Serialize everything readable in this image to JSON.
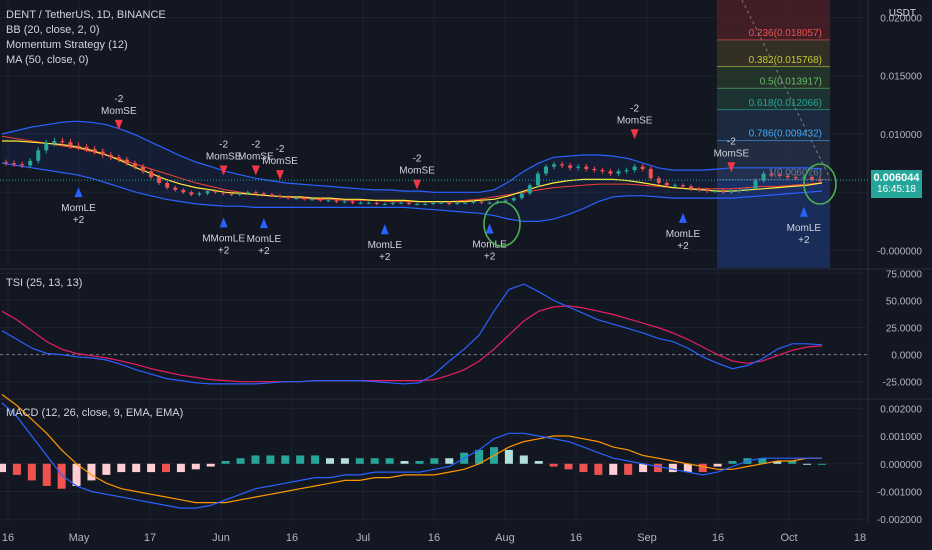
{
  "header": {
    "symbol_line": "DENT / TetherUS, 1D, BINANCE",
    "indicators": [
      "BB (20, close, 2, 0)",
      "Momentum Strategy (12)",
      "MA (50, close, 0)"
    ],
    "currency": "USDT"
  },
  "price_tag": {
    "price": "0.006044",
    "countdown": "16:45:18"
  },
  "tsi_label": "TSI (25, 13, 13)",
  "macd_label": "MACD (12, 26, close, 9, EMA, EMA)",
  "colors": {
    "bg": "#131722",
    "up": "#26a69a",
    "down": "#ef5350",
    "bb": "#2962ff",
    "ma": "#ffeb3b",
    "orange": "#ff9800",
    "tsi_signal": "#e91e63",
    "long": "#2962ff",
    "short": "#f23645",
    "grid": "#1e222d",
    "circle": "#4caf50"
  },
  "chart_data": [
    {
      "type": "candlestick",
      "name": "price",
      "x_ticks": [
        "16",
        "May",
        "17",
        "Jun",
        "16",
        "Jul",
        "16",
        "Aug",
        "16",
        "Sep",
        "16",
        "Oct",
        "18"
      ],
      "y_ticks": [
        "0.020000",
        "0.015000",
        "0.010000",
        "0.005000",
        "-0.000000"
      ],
      "ylim": [
        -0.0015,
        0.0215
      ],
      "closes": [
        0.0075,
        0.0074,
        0.0073,
        0.0077,
        0.0086,
        0.0092,
        0.0094,
        0.0093,
        0.009,
        0.0089,
        0.0087,
        0.0085,
        0.0082,
        0.008,
        0.0078,
        0.0075,
        0.0072,
        0.0068,
        0.0063,
        0.0058,
        0.0054,
        0.0052,
        0.005,
        0.0048,
        0.0049,
        0.0051,
        0.005,
        0.0049,
        0.0048,
        0.0049,
        0.005,
        0.0049,
        0.0048,
        0.0047,
        0.0046,
        0.0045,
        0.0045,
        0.0044,
        0.0044,
        0.0043,
        0.0043,
        0.0042,
        0.0042,
        0.0041,
        0.0041,
        0.0041,
        0.004,
        0.004,
        0.0041,
        0.0041,
        0.004,
        0.004,
        0.004,
        0.0041,
        0.0041,
        0.004,
        0.0041,
        0.0041,
        0.0042,
        0.0041,
        0.0041,
        0.0042,
        0.0043,
        0.0045,
        0.0049,
        0.0056,
        0.0066,
        0.0072,
        0.0074,
        0.0073,
        0.0071,
        0.0072,
        0.007,
        0.0069,
        0.0068,
        0.0066,
        0.0068,
        0.0069,
        0.0072,
        0.007,
        0.0062,
        0.0058,
        0.0056,
        0.0056,
        0.0055,
        0.0053,
        0.0052,
        0.0051,
        0.0051,
        0.005,
        0.0051,
        0.0052,
        0.0053,
        0.006,
        0.0066,
        0.0065,
        0.0064,
        0.0063,
        0.0062,
        0.0063,
        0.0061,
        0.006
      ],
      "bb_upper": [
        0.01,
        0.0103,
        0.0106,
        0.0108,
        0.011,
        0.0111,
        0.011,
        0.0108,
        0.0104,
        0.0099,
        0.0093,
        0.0087,
        0.0081,
        0.0076,
        0.0072,
        0.0068,
        0.0065,
        0.0062,
        0.006,
        0.0058,
        0.0057,
        0.0056,
        0.0055,
        0.0054,
        0.0053,
        0.0052,
        0.0052,
        0.0051,
        0.0051,
        0.005,
        0.005,
        0.005,
        0.005,
        0.0052,
        0.0059,
        0.0068,
        0.0075,
        0.008,
        0.0081,
        0.0082,
        0.0082,
        0.0081,
        0.0079,
        0.0075,
        0.0071,
        0.0069,
        0.0069,
        0.0069,
        0.007,
        0.0071,
        0.0071,
        0.0071,
        0.0071,
        0.0071,
        0.0071,
        0.007
      ],
      "bb_lower": [
        0.0075,
        0.0073,
        0.0071,
        0.0069,
        0.0067,
        0.0065,
        0.0062,
        0.0058,
        0.0054,
        0.005,
        0.0047,
        0.0044,
        0.0042,
        0.004,
        0.0039,
        0.0038,
        0.0038,
        0.0037,
        0.0037,
        0.0037,
        0.0037,
        0.0037,
        0.0037,
        0.0037,
        0.0037,
        0.0037,
        0.0037,
        0.0037,
        0.0036,
        0.0035,
        0.0034,
        0.0033,
        0.0032,
        0.003,
        0.0027,
        0.0025,
        0.0025,
        0.0027,
        0.0031,
        0.0036,
        0.0042,
        0.0046,
        0.0047,
        0.0047,
        0.0046,
        0.0045,
        0.0045,
        0.0045,
        0.0045,
        0.0045,
        0.0046,
        0.0047,
        0.0048,
        0.0049,
        0.005,
        0.0051
      ],
      "ma50": [
        0.0094,
        0.0094,
        0.0093,
        0.0092,
        0.0091,
        0.0089,
        0.0086,
        0.0082,
        0.0077,
        0.0071,
        0.0066,
        0.0061,
        0.0057,
        0.0054,
        0.0052,
        0.005,
        0.0049,
        0.0048,
        0.0047,
        0.0046,
        0.0046,
        0.0045,
        0.0045,
        0.0044,
        0.0044,
        0.0043,
        0.0043,
        0.0043,
        0.0042,
        0.0042,
        0.0042,
        0.0042,
        0.0043,
        0.0044,
        0.0047,
        0.0051,
        0.0055,
        0.0058,
        0.006,
        0.0061,
        0.0061,
        0.0061,
        0.006,
        0.0058,
        0.0056,
        0.0054,
        0.0053,
        0.0052,
        0.0051,
        0.0051,
        0.0052,
        0.0053,
        0.0054,
        0.0055,
        0.0056,
        0.0058
      ],
      "ma_orange": [
        0.0098,
        0.0096,
        0.0094,
        0.0092,
        0.009,
        0.0088,
        0.0085,
        0.0082,
        0.0078,
        0.0074,
        0.007,
        0.0066,
        0.0062,
        0.0058,
        0.0055,
        0.0052,
        0.005,
        0.0048,
        0.0047,
        0.0046,
        0.0045,
        0.0044,
        0.0044,
        0.0043,
        0.0043,
        0.0043,
        0.0042,
        0.0042,
        0.0042,
        0.0042,
        0.0042,
        0.0043,
        0.0044,
        0.0046,
        0.0048,
        0.005,
        0.0052,
        0.0054,
        0.0055,
        0.0056,
        0.0057,
        0.0057,
        0.0057,
        0.0056,
        0.0055,
        0.0054,
        0.0053,
        0.0053,
        0.0053,
        0.0053,
        0.0054,
        0.0055,
        0.0055,
        0.0056,
        0.0057,
        0.0058
      ],
      "fib_levels": [
        {
          "label": "0.236(0.018057)",
          "value": 0.018057,
          "color": "#ef5350"
        },
        {
          "label": "0.382(0.015768)",
          "value": 0.015768,
          "color": "#c0ca33"
        },
        {
          "label": "0.5(0.013917)",
          "value": 0.013917,
          "color": "#66bb6a"
        },
        {
          "label": "0.618(0.012066)",
          "value": 0.012066,
          "color": "#26a69a"
        },
        {
          "label": "0.786(0.009432)",
          "value": 0.009432,
          "color": "#42a5f5"
        },
        {
          "label": "1(0.006076)",
          "value": 0.006076,
          "color": "#787b86"
        }
      ],
      "signals": [
        {
          "side": "short",
          "label": "-2",
          "name": "MomSE",
          "bar": 14
        },
        {
          "side": "long",
          "label": "+2",
          "name": "MomLE",
          "bar": 9
        },
        {
          "side": "short",
          "label": "-2",
          "name": "MomSE",
          "bar": 27
        },
        {
          "side": "short",
          "label": "-2",
          "name": "MomSE",
          "bar": 31
        },
        {
          "side": "short",
          "label": "-2",
          "name": "MomSE",
          "bar": 34
        },
        {
          "side": "long",
          "label": "+2",
          "name": "MMomLE",
          "bar": 27
        },
        {
          "side": "long",
          "label": "+2",
          "name": "MomLE",
          "bar": 32
        },
        {
          "side": "short",
          "label": "-2",
          "name": "MomSE",
          "bar": 51
        },
        {
          "side": "long",
          "label": "+2",
          "name": "MomLE",
          "bar": 47
        },
        {
          "side": "long",
          "label": "+2",
          "name": "MomLE",
          "bar": 60
        },
        {
          "side": "short",
          "label": "-2",
          "name": "MomSE",
          "bar": 78
        },
        {
          "side": "short",
          "label": "-2",
          "name": "MomSE",
          "bar": 90
        },
        {
          "side": "long",
          "label": "+2",
          "name": "MomLE",
          "bar": 84
        },
        {
          "side": "long",
          "label": "+2",
          "name": "MomLE",
          "bar": 99
        }
      ]
    },
    {
      "type": "line",
      "name": "TSI",
      "y_ticks": [
        "75.0000",
        "50.0000",
        "25.0000",
        "0.0000",
        "-25.0000"
      ],
      "ylim": [
        -40,
        78
      ],
      "tsi": [
        22,
        14,
        6,
        1,
        0,
        -2,
        -3,
        -5,
        -9,
        -14,
        -18,
        -22,
        -24,
        -26,
        -27,
        -27,
        -27,
        -27,
        -26,
        -25,
        -25,
        -24,
        -24,
        -24,
        -24,
        -25,
        -26,
        -27,
        -26,
        -18,
        -6,
        5,
        18,
        40,
        60,
        65,
        58,
        50,
        44,
        38,
        32,
        28,
        24,
        20,
        15,
        12,
        6,
        -2,
        -8,
        -13,
        -10,
        -4,
        5,
        10,
        10,
        9
      ],
      "signal": [
        40,
        32,
        22,
        12,
        5,
        1,
        -1,
        -3,
        -6,
        -9,
        -13,
        -16,
        -19,
        -21,
        -23,
        -24,
        -25,
        -25,
        -25,
        -25,
        -25,
        -24,
        -24,
        -24,
        -24,
        -24,
        -24,
        -24,
        -24,
        -23,
        -19,
        -14,
        -6,
        5,
        18,
        31,
        40,
        44,
        45,
        43,
        40,
        37,
        33,
        29,
        25,
        20,
        14,
        7,
        0,
        -6,
        -8,
        -6,
        -1,
        4,
        7,
        8
      ]
    },
    {
      "type": "bar",
      "name": "MACD",
      "y_ticks": [
        "0.002000",
        "0.001000",
        "0.000000",
        "-0.001000",
        "-0.002000"
      ],
      "ylim": [
        -0.0021,
        0.0023
      ],
      "macd": [
        0.0022,
        0.0017,
        0.001,
        0.0003,
        -0.0004,
        -0.0008,
        -0.001,
        -0.0011,
        -0.0012,
        -0.0013,
        -0.0014,
        -0.0015,
        -0.0016,
        -0.0016,
        -0.0015,
        -0.0013,
        -0.0011,
        -0.0009,
        -0.0008,
        -0.0007,
        -0.0006,
        -0.0005,
        -0.0005,
        -0.0004,
        -0.0004,
        -0.0003,
        -0.0003,
        -0.0003,
        -0.0003,
        -0.0002,
        -0.0001,
        0.0002,
        0.0005,
        0.0009,
        0.0011,
        0.0011,
        0.001,
        0.0009,
        0.0008,
        0.0006,
        0.0004,
        0.0002,
        0.0001,
        0.0,
        -0.0001,
        -0.0002,
        -0.0003,
        -0.0004,
        -0.0003,
        -0.0001,
        0.0001,
        0.0002,
        0.0002,
        0.0002,
        0.0002,
        0.0002
      ],
      "signal": [
        0.0025,
        0.0021,
        0.0016,
        0.0011,
        0.0005,
        0.0,
        -0.0004,
        -0.0007,
        -0.0009,
        -0.001,
        -0.0011,
        -0.0012,
        -0.0013,
        -0.0014,
        -0.0014,
        -0.0014,
        -0.0013,
        -0.0012,
        -0.0011,
        -0.001,
        -0.0009,
        -0.0008,
        -0.0007,
        -0.0006,
        -0.0006,
        -0.0005,
        -0.0005,
        -0.0004,
        -0.0004,
        -0.0004,
        -0.0003,
        -0.0002,
        0.0,
        0.0003,
        0.0006,
        0.0008,
        0.0009,
        0.001,
        0.001,
        0.0009,
        0.0008,
        0.0006,
        0.0005,
        0.0003,
        0.0002,
        0.0001,
        0.0,
        -0.0001,
        -0.0002,
        -0.0002,
        -0.0001,
        0.0,
        0.0001,
        0.0001,
        0.0002,
        0.0002
      ]
    }
  ]
}
